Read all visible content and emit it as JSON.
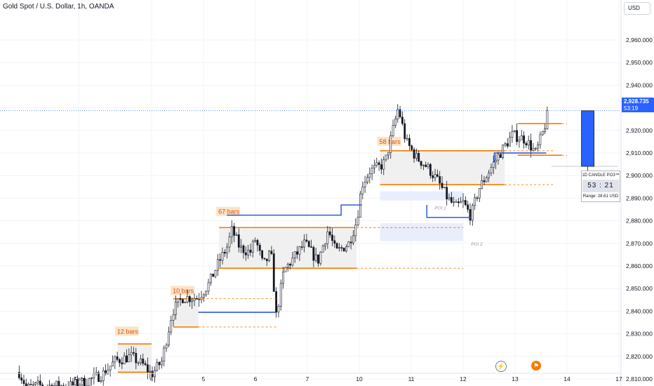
{
  "title": "Gold Spot / U.S. Dollar, 1h, OANDA",
  "currency_button": "USD",
  "current_price": {
    "price": "2,928.735",
    "countdown": "53:19"
  },
  "candle_widget": {
    "header": "1D CANDLE PO3™",
    "timer": "53 : 21",
    "range": "Range: 28.61 USD"
  },
  "icons": {
    "event": "lightning-icon",
    "earnings": "flag-icon"
  },
  "colors": {
    "up": "#089981",
    "down": "#f23645",
    "candle": "#131722",
    "orange": "#f57c00",
    "blue": "#1e4ddb",
    "po3": "#2962ff",
    "last_price_line": "#2962ff"
  },
  "chart_data": {
    "type": "candlestick",
    "title": "Gold Spot / U.S. Dollar, 1h, OANDA",
    "y_ticks": [
      2810,
      2820,
      2830,
      2840,
      2850,
      2860,
      2870,
      2880,
      2890,
      2900,
      2910,
      2920,
      2930,
      2940,
      2950,
      2960
    ],
    "y_tick_labels": [
      "2,810.000",
      "2,820.000",
      "2,830.000",
      "2,840.000",
      "2,850.000",
      "2,860.000",
      "2,870.000",
      "2,880.000",
      "2,890.000",
      "2,900.000",
      "2,910.000",
      "2,920.000",
      "2,930.000",
      "2,940.000",
      "2,950.000",
      "2,960.000"
    ],
    "ylim": [
      2807,
      2969
    ],
    "x_ticks": [
      {
        "label": "Feb",
        "t": -0.4
      },
      {
        "label": "4",
        "t": 1.0
      },
      {
        "label": "5",
        "t": 2.0
      },
      {
        "label": "6",
        "t": 3.0
      },
      {
        "label": "7",
        "t": 4.0
      },
      {
        "label": "10",
        "t": 5.0
      },
      {
        "label": "11",
        "t": 6.0
      },
      {
        "label": "12",
        "t": 7.0
      },
      {
        "label": "13",
        "t": 8.0
      },
      {
        "label": "14",
        "t": 9.0
      },
      {
        "label": "17",
        "t": 10.0
      }
    ],
    "anchors": [
      [
        -1.55,
        2813
      ],
      [
        -1.4,
        2806
      ],
      [
        -1.2,
        2807
      ],
      [
        -0.55,
        2807
      ],
      [
        -0.25,
        2809
      ],
      [
        0.05,
        2812
      ],
      [
        0.3,
        2818
      ],
      [
        0.6,
        2820
      ],
      [
        0.85,
        2816
      ],
      [
        1.0,
        2812
      ],
      [
        1.2,
        2818
      ],
      [
        1.4,
        2840
      ],
      [
        1.6,
        2846
      ],
      [
        1.75,
        2846
      ],
      [
        1.9,
        2846
      ],
      [
        2.1,
        2852
      ],
      [
        2.3,
        2862
      ],
      [
        2.45,
        2868
      ],
      [
        2.55,
        2876
      ],
      [
        2.7,
        2868
      ],
      [
        2.9,
        2866
      ],
      [
        3.0,
        2872
      ],
      [
        3.15,
        2860
      ],
      [
        3.3,
        2866
      ],
      [
        3.4,
        2838
      ],
      [
        3.55,
        2858
      ],
      [
        3.75,
        2864
      ],
      [
        3.95,
        2870
      ],
      [
        4.2,
        2862
      ],
      [
        4.4,
        2876
      ],
      [
        4.55,
        2866
      ],
      [
        4.8,
        2870
      ],
      [
        4.95,
        2880
      ],
      [
        5.05,
        2896
      ],
      [
        5.2,
        2902
      ],
      [
        5.4,
        2904
      ],
      [
        5.5,
        2906
      ],
      [
        5.75,
        2930
      ],
      [
        5.9,
        2915
      ],
      [
        6.1,
        2908
      ],
      [
        6.3,
        2904
      ],
      [
        6.5,
        2898
      ],
      [
        6.7,
        2890
      ],
      [
        6.85,
        2886
      ],
      [
        7.0,
        2888
      ],
      [
        7.15,
        2882
      ],
      [
        7.3,
        2894
      ],
      [
        7.45,
        2900
      ],
      [
        7.6,
        2906
      ],
      [
        7.8,
        2913
      ],
      [
        7.95,
        2918
      ],
      [
        8.2,
        2916
      ],
      [
        8.4,
        2910
      ],
      [
        8.55,
        2920
      ],
      [
        8.65,
        2929
      ]
    ],
    "po3_candle": {
      "open": 2904.1,
      "high": 2928.7,
      "low": 2900.1,
      "close": 2928.7
    },
    "ranges": [
      {
        "label": "12 bars",
        "from": 0.35,
        "to": 1.0,
        "top": 2825.5,
        "bottom": 2813,
        "label_price": 2831
      },
      {
        "label": "10 bars",
        "from": 1.42,
        "to": 1.9,
        "top": 2845.5,
        "bottom": 2833,
        "label_price": 2849
      },
      {
        "label": "67 bars",
        "from": 2.3,
        "to": 4.95,
        "top": 2877,
        "bottom": 2859,
        "label_price": 2884
      },
      {
        "label": "58 bars",
        "from": 5.4,
        "to": 7.8,
        "top": 2911,
        "bottom": 2896,
        "label_price": 2915
      }
    ],
    "dashed_levels": [
      {
        "price": 2845.5,
        "from": 1.9,
        "to": 3.4
      },
      {
        "price": 2833,
        "from": 1.9,
        "to": 3.4
      },
      {
        "price": 2877,
        "from": 4.95,
        "to": 7.0
      },
      {
        "price": 2859,
        "from": 4.95,
        "to": 7.0
      },
      {
        "price": 2911,
        "from": 7.8,
        "to": 8.75
      },
      {
        "price": 2896,
        "from": 7.8,
        "to": 8.75
      },
      {
        "price": 2923,
        "from": 8.9,
        "to": 9.0
      },
      {
        "price": 2909,
        "from": 8.9,
        "to": 9.0
      }
    ],
    "orange_solid": [
      {
        "price": 2923,
        "from": 8.05,
        "to": 8.9
      },
      {
        "price": 2909,
        "from": 8.05,
        "to": 8.9
      }
    ],
    "structure_lines": [
      {
        "points": [
          [
            1.9,
            2839.5
          ],
          [
            3.4,
            2839.5
          ]
        ]
      },
      {
        "points": [
          [
            2.45,
            2882.5
          ],
          [
            4.65,
            2882.5
          ],
          [
            4.65,
            2887
          ],
          [
            5.05,
            2887
          ]
        ]
      },
      {
        "points": [
          [
            6.3,
            2887
          ],
          [
            6.3,
            2881.5
          ],
          [
            7.15,
            2881.5
          ]
        ]
      },
      {
        "points": [
          [
            7.6,
            2906
          ],
          [
            7.6,
            2910
          ],
          [
            8.6,
            2910
          ]
        ]
      }
    ],
    "poi_zones": [
      {
        "label": "POI 1",
        "from": 5.4,
        "to": 7.0,
        "top": 2893,
        "bottom": 2889
      },
      {
        "label": "POI 2",
        "from": 5.4,
        "to": 7.0,
        "top": 2879,
        "bottom": 2871
      }
    ],
    "poi_labels": [
      {
        "label": "POI 1",
        "t": 6.45,
        "price": 2885
      },
      {
        "label": "POI 2",
        "t": 7.15,
        "price": 2869
      }
    ]
  }
}
